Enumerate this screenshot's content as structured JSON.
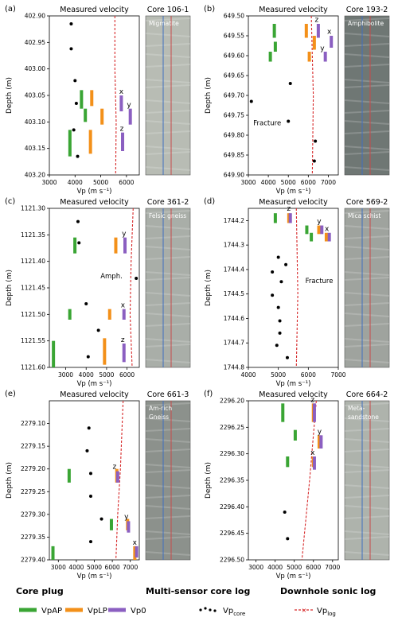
{
  "chart_data": [
    {
      "type": "scatter",
      "panel_label": "(a)",
      "title": "Measured velocity",
      "xlabel": "Vp (m s⁻¹)",
      "ylabel": "Depth (m)",
      "xlim": [
        3000,
        6500
      ],
      "xticks": [
        3000,
        4000,
        5000,
        6000
      ],
      "ylim": [
        402.9,
        403.2
      ],
      "yticks": [
        "402.90",
        "402.95",
        "403.00",
        "403.05",
        "403.10",
        "403.15",
        "403.20"
      ],
      "core_title": "Core 106-1",
      "rock_label": [
        "Migmatite"
      ],
      "core_color": "#b8bcb4",
      "vp_core": [
        [
          3850,
          402.915
        ],
        [
          3850,
          402.962
        ],
        [
          4000,
          403.022
        ],
        [
          4050,
          403.065
        ],
        [
          3950,
          403.115
        ],
        [
          4100,
          403.165
        ]
      ],
      "vpAP": [
        [
          4250,
          403.04,
          403.075
        ],
        [
          4400,
          403.075,
          403.1
        ],
        [
          3800,
          403.115,
          403.165
        ]
      ],
      "vpLP": [
        [
          4650,
          403.04,
          403.07
        ],
        [
          5050,
          403.075,
          403.105
        ],
        [
          4600,
          403.115,
          403.16
        ]
      ],
      "vp0": [
        [
          5800,
          403.05,
          403.08
        ],
        [
          6150,
          403.075,
          403.105
        ],
        [
          5850,
          403.12,
          403.155
        ]
      ],
      "vp_log": [
        [
          5550,
          402.9
        ],
        [
          5550,
          403.0
        ],
        [
          5600,
          403.1
        ],
        [
          5580,
          403.2
        ]
      ],
      "annotations": [
        {
          "text": "x",
          "x": 5800,
          "y": 403.047
        },
        {
          "text": "y",
          "x": 6100,
          "y": 403.072
        },
        {
          "text": "z",
          "x": 5820,
          "y": 403.117
        }
      ]
    },
    {
      "type": "scatter",
      "panel_label": "(b)",
      "title": "Measured velocity",
      "xlabel": "Vp (m s⁻¹)",
      "ylabel": "Depth (m)",
      "xlim": [
        3000,
        7500
      ],
      "xticks": [
        3000,
        4000,
        5000,
        6000,
        7000
      ],
      "ylim": [
        649.5,
        649.9
      ],
      "yticks": [
        "649.50",
        "649.55",
        "649.60",
        "649.65",
        "649.70",
        "649.75",
        "649.80",
        "649.85",
        "649.90"
      ],
      "core_title": "Core 193-2",
      "rock_label": [
        "Amphibolite"
      ],
      "core_color": "#6f7774",
      "vp_core": [
        [
          5100,
          649.67
        ],
        [
          3150,
          649.715
        ],
        [
          5000,
          649.765
        ],
        [
          6350,
          649.815
        ],
        [
          6300,
          649.865
        ]
      ],
      "vpAP": [
        [
          4300,
          649.52,
          649.555
        ],
        [
          4350,
          649.565,
          649.59
        ],
        [
          4100,
          649.59,
          649.615
        ]
      ],
      "vpLP": [
        [
          5900,
          649.52,
          649.555
        ],
        [
          6300,
          649.55,
          649.585
        ],
        [
          6050,
          649.59,
          649.615
        ]
      ],
      "vp0": [
        [
          6500,
          649.52,
          649.555
        ],
        [
          7150,
          649.55,
          649.58
        ],
        [
          6850,
          649.59,
          649.615
        ]
      ],
      "vp_log": [
        [
          6150,
          649.5
        ],
        [
          6250,
          649.7
        ],
        [
          6200,
          649.9
        ]
      ],
      "annotations": [
        {
          "text": "z",
          "x": 6420,
          "y": 649.515
        },
        {
          "text": "x",
          "x": 7050,
          "y": 649.545
        },
        {
          "text": "y",
          "x": 6700,
          "y": 649.587
        },
        {
          "text": "Fracture",
          "x": 3250,
          "y": 649.775
        }
      ]
    },
    {
      "type": "scatter",
      "panel_label": "(c)",
      "title": "Measured velocity",
      "xlabel": "Vp (m s⁻¹)",
      "ylabel": "Depth (m)",
      "xlim": [
        2200,
        6600
      ],
      "xticks": [
        3000,
        4000,
        5000,
        6000
      ],
      "ylim": [
        1121.3,
        1121.6
      ],
      "yticks": [
        "1121.30",
        "1121.35",
        "1121.40",
        "1121.45",
        "1121.50",
        "1121.55",
        "1121.60"
      ],
      "core_title": "Core 361-2",
      "rock_label": [
        "Felsic gneiss"
      ],
      "core_color": "#a9aea8",
      "vp_core": [
        [
          3600,
          1121.325
        ],
        [
          3650,
          1121.365
        ],
        [
          6450,
          1121.432
        ],
        [
          4000,
          1121.48
        ],
        [
          4600,
          1121.53
        ],
        [
          4100,
          1121.58
        ]
      ],
      "vpAP": [
        [
          3450,
          1121.355,
          1121.385
        ],
        [
          3200,
          1121.49,
          1121.51
        ],
        [
          2400,
          1121.55,
          1121.6
        ]
      ],
      "vpLP": [
        [
          5450,
          1121.355,
          1121.385
        ],
        [
          5150,
          1121.49,
          1121.51
        ],
        [
          4900,
          1121.545,
          1121.595
        ]
      ],
      "vp0": [
        [
          5900,
          1121.355,
          1121.385
        ],
        [
          5850,
          1121.49,
          1121.51
        ],
        [
          5850,
          1121.555,
          1121.59
        ]
      ],
      "vp_log": [
        [
          6300,
          1121.3
        ],
        [
          6200,
          1121.4
        ],
        [
          6150,
          1121.5
        ],
        [
          6250,
          1121.6
        ]
      ],
      "annotations": [
        {
          "text": "y",
          "x": 5850,
          "y": 1121.352
        },
        {
          "text": "x",
          "x": 5800,
          "y": 1121.487
        },
        {
          "text": "z",
          "x": 5790,
          "y": 1121.552
        },
        {
          "text": "Amph.",
          "x": 4700,
          "y": 1121.432
        }
      ]
    },
    {
      "type": "scatter",
      "panel_label": "(d)",
      "title": "Measured velocity",
      "xlabel": "Vp (m s⁻¹)",
      "ylabel": "Depth (m)",
      "xlim": [
        4000,
        7000
      ],
      "xticks": [
        4000,
        5000,
        6000,
        7000
      ],
      "ylim": [
        1744.15,
        1744.8
      ],
      "yticks": [
        "1744.2",
        "1744.3",
        "1744.4",
        "1744.5",
        "1744.6",
        "1744.7",
        "1744.8"
      ],
      "core_title": "Core 569-2",
      "rock_label": [
        "Mica schist"
      ],
      "core_color": "#9fa39e",
      "vp_core": [
        [
          5000,
          1744.35
        ],
        [
          5250,
          1744.38
        ],
        [
          4800,
          1744.41
        ],
        [
          5100,
          1744.45
        ],
        [
          4800,
          1744.505
        ],
        [
          5000,
          1744.555
        ],
        [
          5050,
          1744.61
        ],
        [
          5050,
          1744.66
        ],
        [
          4950,
          1744.71
        ],
        [
          5300,
          1744.76
        ]
      ],
      "vpAP": [
        [
          4900,
          1744.17,
          1744.21
        ],
        [
          5950,
          1744.22,
          1744.255
        ],
        [
          6100,
          1744.25,
          1744.285
        ]
      ],
      "vpLP": [
        [
          5350,
          1744.17,
          1744.21
        ],
        [
          6350,
          1744.22,
          1744.255
        ],
        [
          6600,
          1744.25,
          1744.285
        ]
      ],
      "vp0": [
        [
          5400,
          1744.17,
          1744.21
        ],
        [
          6450,
          1744.22,
          1744.255
        ],
        [
          6700,
          1744.25,
          1744.285
        ]
      ],
      "vp_log": [
        [
          5600,
          1744.15
        ],
        [
          5650,
          1744.5
        ],
        [
          5600,
          1744.8
        ]
      ],
      "annotations": [
        {
          "text": "z",
          "x": 5350,
          "y": 1744.16
        },
        {
          "text": "y",
          "x": 6360,
          "y": 1744.212
        },
        {
          "text": "x",
          "x": 6620,
          "y": 1744.242
        },
        {
          "text": "Fracture",
          "x": 5900,
          "y": 1744.455
        }
      ]
    },
    {
      "type": "scatter",
      "panel_label": "(e)",
      "title": "Measured velocity",
      "xlabel": "Vp (m s⁻¹)",
      "ylabel": "Depth (m)",
      "xlim": [
        2500,
        7500
      ],
      "xticks": [
        3000,
        4000,
        5000,
        6000,
        7000
      ],
      "ylim": [
        2279.05,
        2279.4
      ],
      "yticks": [
        "2279.10",
        "2279.15",
        "2279.20",
        "2279.25",
        "2279.30",
        "2279.35",
        "2279.40"
      ],
      "core_title": "Core 661-3",
      "rock_label": [
        "Am-rich",
        "Gneiss"
      ],
      "core_color": "#8c918c",
      "vp_core": [
        [
          4700,
          2279.11
        ],
        [
          4600,
          2279.16
        ],
        [
          4800,
          2279.21
        ],
        [
          4800,
          2279.26
        ],
        [
          5400,
          2279.31
        ],
        [
          4800,
          2279.36
        ]
      ],
      "vpAP": [
        [
          3600,
          2279.2,
          2279.23
        ],
        [
          5950,
          2279.31,
          2279.335
        ],
        [
          2700,
          2279.37,
          2279.4
        ]
      ],
      "vpLP": [
        [
          6250,
          2279.2,
          2279.23
        ],
        [
          6850,
          2279.31,
          2279.335
        ],
        [
          7250,
          2279.37,
          2279.4
        ]
      ],
      "vp0": [
        [
          6300,
          2279.205,
          2279.23
        ],
        [
          6900,
          2279.315,
          2279.34
        ],
        [
          7350,
          2279.37,
          2279.395
        ]
      ],
      "vp_log": [
        [
          6600,
          2279.05
        ],
        [
          6450,
          2279.2
        ],
        [
          6300,
          2279.3
        ],
        [
          6200,
          2279.4
        ]
      ],
      "annotations": [
        {
          "text": "z",
          "x": 6120,
          "y": 2279.2
        },
        {
          "text": "y",
          "x": 6780,
          "y": 2279.31
        },
        {
          "text": "x",
          "x": 7250,
          "y": 2279.367
        }
      ]
    },
    {
      "type": "scatter",
      "panel_label": "(f)",
      "title": "Measured velocity",
      "xlabel": "Vp (m s⁻¹)",
      "ylabel": "Depth (m)",
      "xlim": [
        2600,
        7300
      ],
      "xticks": [
        3000,
        4000,
        5000,
        6000,
        7000
      ],
      "ylim": [
        2296.2,
        2296.5
      ],
      "yticks": [
        "2296.20",
        "2296.25",
        "2296.30",
        "2296.35",
        "2296.40",
        "2296.45",
        "2296.50"
      ],
      "core_title": "Core 664-2",
      "rock_label": [
        "Meta-",
        "sandstone"
      ],
      "core_color": "#aeb3ac",
      "vp_core": [
        [
          4500,
          2296.41
        ],
        [
          4650,
          2296.46
        ]
      ],
      "vpAP": [
        [
          4400,
          2296.205,
          2296.24
        ],
        [
          5050,
          2296.255,
          2296.275
        ],
        [
          4650,
          2296.305,
          2296.325
        ]
      ],
      "vpLP": [
        [
          6000,
          2296.205,
          2296.24
        ],
        [
          6300,
          2296.265,
          2296.29
        ],
        [
          6000,
          2296.305,
          2296.325
        ]
      ],
      "vp0": [
        [
          6050,
          2296.205,
          2296.24
        ],
        [
          6400,
          2296.265,
          2296.29
        ],
        [
          6050,
          2296.305,
          2296.33
        ]
      ],
      "vp_log": [
        [
          6150,
          2296.2
        ],
        [
          5800,
          2296.35
        ],
        [
          5400,
          2296.5
        ]
      ],
      "annotations": [
        {
          "text": "z",
          "x": 5960,
          "y": 2296.202
        },
        {
          "text": "y",
          "x": 6320,
          "y": 2296.262
        },
        {
          "text": "x",
          "x": 5960,
          "y": 2296.302
        }
      ]
    }
  ],
  "legend": {
    "groups": [
      {
        "title": "Core plug",
        "items": [
          "VpAP",
          "VpLP",
          "Vp0"
        ]
      },
      {
        "title": "Multi-sensor core log",
        "items": [
          "Vpcore"
        ]
      },
      {
        "title": "Downhole sonic log",
        "items": [
          "Vplog"
        ]
      }
    ],
    "vpap_label": "VpAP",
    "vplp_label": "VpLP",
    "vp0_label": "Vp0",
    "vpcore_main": "Vp",
    "vpcore_sub": "core",
    "vplog_main": "Vp",
    "vplog_sub": "log"
  },
  "colors": {
    "vpAP": "#3aa534",
    "vpLP": "#f39019",
    "vp0": "#8b5fc1",
    "vp_log": "#d62728",
    "vp_core": "#000000",
    "core_trace_blue": "#3f6fc0",
    "core_trace_red": "#c84a4a"
  }
}
